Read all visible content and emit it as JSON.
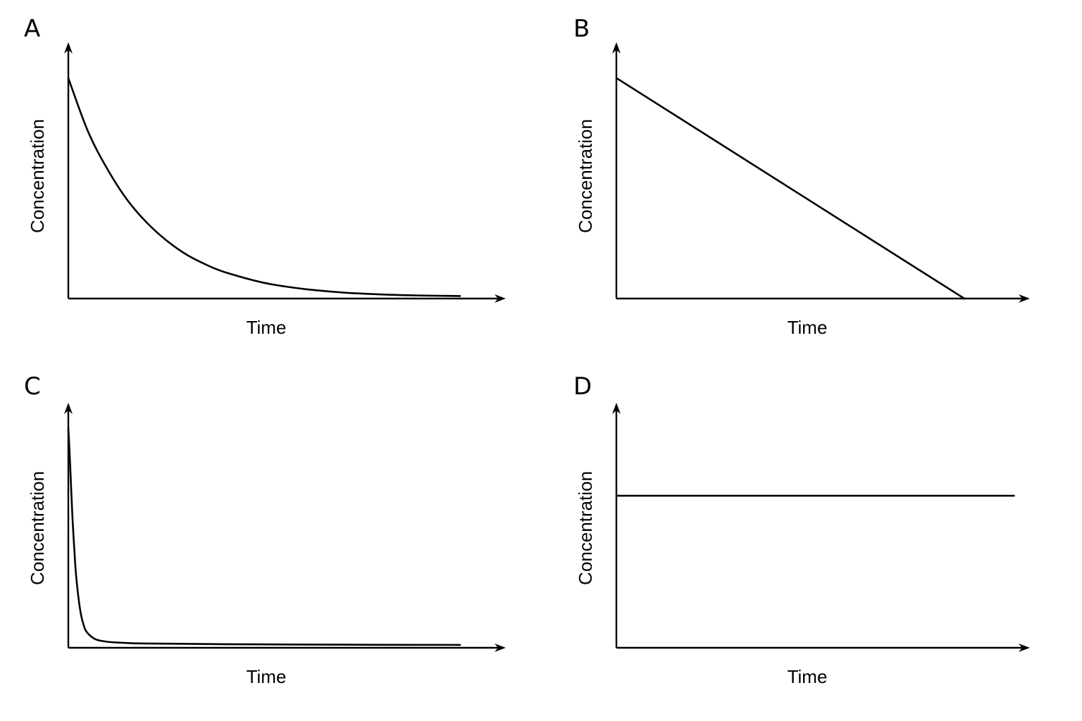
{
  "chart_data": [
    {
      "panel": "A",
      "type": "line",
      "xlabel": "Time",
      "ylabel": "Concentration",
      "xlim": [
        0,
        1
      ],
      "ylim": [
        0,
        1
      ],
      "series": [
        {
          "x": [
            0,
            0.05,
            0.1,
            0.15,
            0.2,
            0.25,
            0.3,
            0.35,
            0.4,
            0.5,
            0.6,
            0.7,
            0.8,
            0.9,
            1.0
          ],
          "y": [
            0.87,
            0.66,
            0.51,
            0.39,
            0.3,
            0.23,
            0.175,
            0.135,
            0.104,
            0.062,
            0.038,
            0.024,
            0.016,
            0.012,
            0.01
          ]
        }
      ]
    },
    {
      "panel": "B",
      "type": "line",
      "xlabel": "Time",
      "ylabel": "Concentration",
      "xlim": [
        0,
        1
      ],
      "ylim": [
        0,
        1
      ],
      "series": [
        {
          "x": [
            0,
            0.84
          ],
          "y": [
            0.87,
            0
          ]
        }
      ]
    },
    {
      "panel": "C",
      "type": "line",
      "xlabel": "Time",
      "ylabel": "Concentration",
      "xlim": [
        0,
        1
      ],
      "ylim": [
        0,
        1
      ],
      "series": [
        {
          "x": [
            0,
            0.005,
            0.01,
            0.015,
            0.02,
            0.03,
            0.04,
            0.05,
            0.07,
            0.1,
            0.15,
            0.2,
            0.4,
            0.7,
            1.0
          ],
          "y": [
            0.92,
            0.75,
            0.56,
            0.42,
            0.3,
            0.16,
            0.09,
            0.06,
            0.035,
            0.025,
            0.02,
            0.018,
            0.015,
            0.013,
            0.012
          ]
        }
      ]
    },
    {
      "panel": "D",
      "type": "line",
      "xlabel": "Time",
      "ylabel": "Concentration",
      "xlim": [
        0,
        1
      ],
      "ylim": [
        0,
        1
      ],
      "series": [
        {
          "x": [
            0,
            0.96
          ],
          "y": [
            0.61,
            0.61
          ]
        }
      ]
    }
  ]
}
